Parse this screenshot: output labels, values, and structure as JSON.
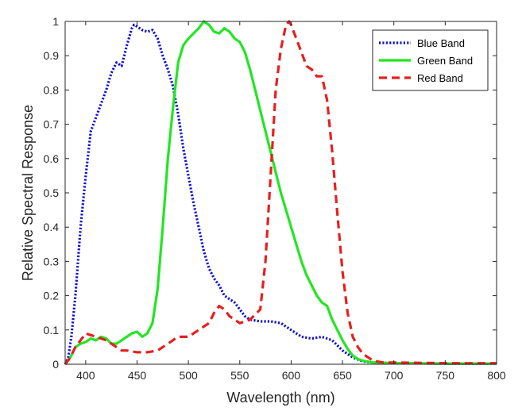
{
  "chart_data": {
    "type": "line",
    "xlabel": "Wavelength (nm)",
    "ylabel": "Relative Spectral Response",
    "xlim": [
      380,
      800
    ],
    "ylim": [
      0,
      1
    ],
    "x_ticks": [
      400,
      450,
      500,
      550,
      600,
      650,
      700,
      750,
      800
    ],
    "y_ticks": [
      0,
      0.1,
      0.2,
      0.3,
      0.4,
      0.5,
      0.6,
      0.7,
      0.8,
      0.9,
      1
    ],
    "grid": false,
    "legend_position": "top-right",
    "series": [
      {
        "name": "Blue Band",
        "color": "#1010d0",
        "dash": "dotted",
        "points": [
          [
            380,
            0.0
          ],
          [
            383,
            0.02
          ],
          [
            386,
            0.08
          ],
          [
            390,
            0.2
          ],
          [
            395,
            0.4
          ],
          [
            400,
            0.55
          ],
          [
            405,
            0.68
          ],
          [
            410,
            0.72
          ],
          [
            415,
            0.76
          ],
          [
            420,
            0.8
          ],
          [
            425,
            0.85
          ],
          [
            430,
            0.88
          ],
          [
            435,
            0.87
          ],
          [
            440,
            0.93
          ],
          [
            445,
            0.98
          ],
          [
            447,
            0.99
          ],
          [
            450,
            0.985
          ],
          [
            455,
            0.975
          ],
          [
            460,
            0.97
          ],
          [
            465,
            0.975
          ],
          [
            470,
            0.95
          ],
          [
            475,
            0.9
          ],
          [
            480,
            0.86
          ],
          [
            485,
            0.81
          ],
          [
            490,
            0.73
          ],
          [
            495,
            0.63
          ],
          [
            500,
            0.55
          ],
          [
            505,
            0.47
          ],
          [
            510,
            0.4
          ],
          [
            515,
            0.33
          ],
          [
            520,
            0.28
          ],
          [
            525,
            0.25
          ],
          [
            530,
            0.23
          ],
          [
            535,
            0.2
          ],
          [
            540,
            0.19
          ],
          [
            545,
            0.18
          ],
          [
            550,
            0.16
          ],
          [
            555,
            0.14
          ],
          [
            560,
            0.13
          ],
          [
            570,
            0.125
          ],
          [
            580,
            0.125
          ],
          [
            590,
            0.12
          ],
          [
            600,
            0.1
          ],
          [
            610,
            0.08
          ],
          [
            620,
            0.075
          ],
          [
            630,
            0.08
          ],
          [
            640,
            0.07
          ],
          [
            650,
            0.04
          ],
          [
            660,
            0.02
          ],
          [
            670,
            0.008
          ],
          [
            680,
            0.005
          ],
          [
            700,
            0.003
          ],
          [
            750,
            0.002
          ],
          [
            800,
            0.002
          ]
        ]
      },
      {
        "name": "Green Band",
        "color": "#22e622",
        "dash": "solid",
        "points": [
          [
            380,
            0.0
          ],
          [
            385,
            0.02
          ],
          [
            390,
            0.05
          ],
          [
            395,
            0.06
          ],
          [
            400,
            0.065
          ],
          [
            405,
            0.075
          ],
          [
            410,
            0.07
          ],
          [
            415,
            0.08
          ],
          [
            420,
            0.075
          ],
          [
            425,
            0.06
          ],
          [
            430,
            0.06
          ],
          [
            435,
            0.07
          ],
          [
            440,
            0.08
          ],
          [
            445,
            0.09
          ],
          [
            450,
            0.095
          ],
          [
            455,
            0.08
          ],
          [
            460,
            0.09
          ],
          [
            465,
            0.12
          ],
          [
            470,
            0.22
          ],
          [
            475,
            0.4
          ],
          [
            480,
            0.6
          ],
          [
            485,
            0.75
          ],
          [
            490,
            0.88
          ],
          [
            495,
            0.93
          ],
          [
            500,
            0.95
          ],
          [
            505,
            0.965
          ],
          [
            510,
            0.98
          ],
          [
            515,
            1.0
          ],
          [
            520,
            0.99
          ],
          [
            525,
            0.97
          ],
          [
            530,
            0.965
          ],
          [
            535,
            0.98
          ],
          [
            540,
            0.97
          ],
          [
            545,
            0.95
          ],
          [
            550,
            0.94
          ],
          [
            555,
            0.91
          ],
          [
            560,
            0.86
          ],
          [
            565,
            0.8
          ],
          [
            570,
            0.74
          ],
          [
            575,
            0.68
          ],
          [
            580,
            0.62
          ],
          [
            585,
            0.56
          ],
          [
            590,
            0.5
          ],
          [
            595,
            0.45
          ],
          [
            600,
            0.4
          ],
          [
            605,
            0.35
          ],
          [
            610,
            0.3
          ],
          [
            615,
            0.26
          ],
          [
            620,
            0.23
          ],
          [
            625,
            0.2
          ],
          [
            630,
            0.18
          ],
          [
            635,
            0.17
          ],
          [
            640,
            0.13
          ],
          [
            645,
            0.1
          ],
          [
            650,
            0.07
          ],
          [
            655,
            0.045
          ],
          [
            660,
            0.025
          ],
          [
            665,
            0.015
          ],
          [
            670,
            0.01
          ],
          [
            680,
            0.005
          ],
          [
            700,
            0.003
          ],
          [
            750,
            0.002
          ],
          [
            800,
            0.002
          ]
        ]
      },
      {
        "name": "Red Band",
        "color": "#e62020",
        "dash": "dashed",
        "points": [
          [
            380,
            0.0
          ],
          [
            385,
            0.02
          ],
          [
            390,
            0.05
          ],
          [
            395,
            0.07
          ],
          [
            400,
            0.09
          ],
          [
            405,
            0.085
          ],
          [
            410,
            0.08
          ],
          [
            415,
            0.075
          ],
          [
            420,
            0.07
          ],
          [
            425,
            0.06
          ],
          [
            430,
            0.05
          ],
          [
            435,
            0.04
          ],
          [
            440,
            0.04
          ],
          [
            450,
            0.035
          ],
          [
            460,
            0.035
          ],
          [
            470,
            0.04
          ],
          [
            480,
            0.06
          ],
          [
            490,
            0.08
          ],
          [
            500,
            0.08
          ],
          [
            510,
            0.1
          ],
          [
            520,
            0.12
          ],
          [
            525,
            0.15
          ],
          [
            530,
            0.17
          ],
          [
            535,
            0.16
          ],
          [
            540,
            0.14
          ],
          [
            545,
            0.13
          ],
          [
            550,
            0.12
          ],
          [
            560,
            0.13
          ],
          [
            570,
            0.16
          ],
          [
            575,
            0.3
          ],
          [
            580,
            0.55
          ],
          [
            585,
            0.8
          ],
          [
            590,
            0.92
          ],
          [
            595,
            0.99
          ],
          [
            598,
            1.0
          ],
          [
            600,
            0.99
          ],
          [
            605,
            0.95
          ],
          [
            610,
            0.91
          ],
          [
            615,
            0.87
          ],
          [
            620,
            0.86
          ],
          [
            625,
            0.84
          ],
          [
            630,
            0.84
          ],
          [
            635,
            0.77
          ],
          [
            640,
            0.62
          ],
          [
            645,
            0.44
          ],
          [
            650,
            0.27
          ],
          [
            655,
            0.15
          ],
          [
            660,
            0.08
          ],
          [
            665,
            0.05
          ],
          [
            670,
            0.03
          ],
          [
            675,
            0.02
          ],
          [
            680,
            0.01
          ],
          [
            690,
            0.005
          ],
          [
            700,
            0.005
          ],
          [
            750,
            0.003
          ],
          [
            800,
            0.003
          ]
        ]
      }
    ]
  }
}
